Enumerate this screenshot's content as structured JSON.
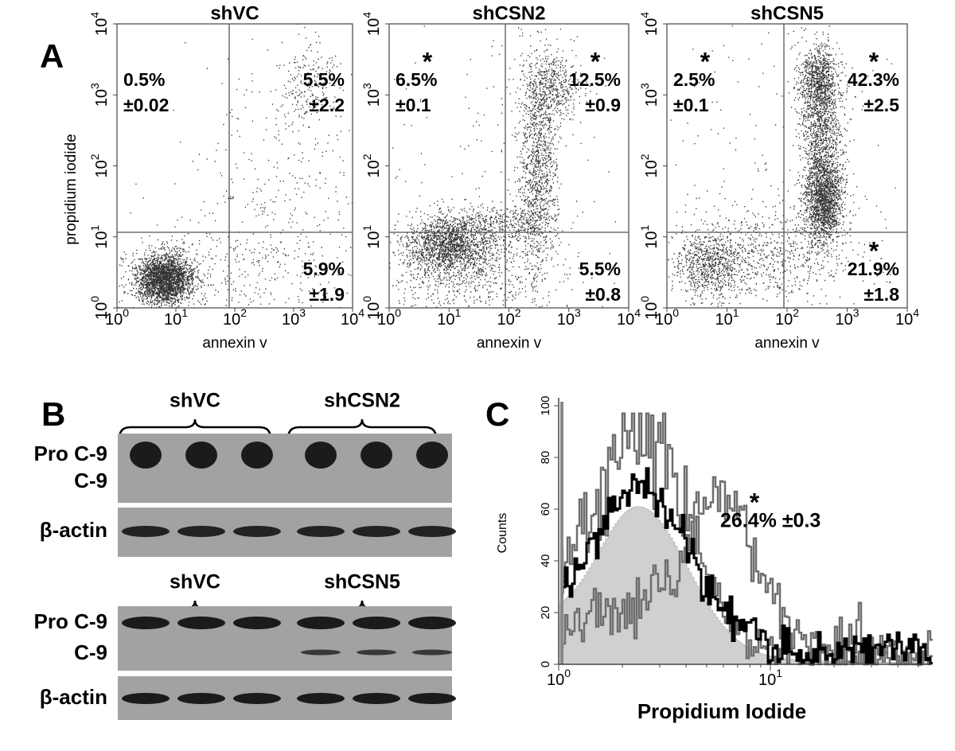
{
  "panel_a": {
    "label": "A",
    "y_axis_label": "propidium iodide",
    "tick_base": "10",
    "tick_exponents": [
      "0",
      "1",
      "2",
      "3",
      "4"
    ],
    "plots": [
      {
        "title": "shVC",
        "x_axis_label": "annexin v",
        "quadrants": [
          {
            "position": "upper_left",
            "value": "0.5%",
            "error": "±0.02"
          },
          {
            "position": "upper_right",
            "value": "5.5%",
            "error": "±2.2"
          },
          {
            "position": "lower_right",
            "value": "5.9%",
            "error": "±1.9"
          }
        ]
      },
      {
        "title": "shCSN2",
        "x_axis_label": "annexin v",
        "quadrants": [
          {
            "position": "upper_left",
            "value": "6.5%",
            "error": "±0.1",
            "mark": "*"
          },
          {
            "position": "upper_right",
            "value": "12.5%",
            "error": "±0.9",
            "mark": "*"
          },
          {
            "position": "lower_right",
            "value": "5.5%",
            "error": "±0.8"
          }
        ]
      },
      {
        "title": "shCSN5",
        "x_axis_label": "annexin v",
        "quadrants": [
          {
            "position": "upper_left",
            "value": "2.5%",
            "error": "±0.1",
            "mark": "*"
          },
          {
            "position": "upper_right",
            "value": "42.3%",
            "error": "±2.5",
            "mark": "*"
          },
          {
            "position": "lower_right",
            "value": "21.9%",
            "error": "±1.8",
            "mark": "*"
          }
        ]
      }
    ]
  },
  "panel_b": {
    "label": "B",
    "blots": [
      {
        "groups": [
          "shVC",
          "shCSN2"
        ],
        "rows": [
          "Pro C-9",
          "C-9",
          "β-actin"
        ]
      },
      {
        "groups": [
          "shVC",
          "shCSN5"
        ],
        "rows": [
          "Pro C-9",
          "C-9",
          "β-actin"
        ]
      }
    ]
  },
  "panel_c": {
    "label": "C",
    "y_axis_label": "Counts",
    "yticks": [
      0,
      20,
      40,
      60,
      80,
      100
    ],
    "tick_base": "10",
    "x_tick_exponents": [
      "0",
      "1"
    ],
    "x_axis_label": "Propidium Iodide",
    "annotation": "26.4% ±0.3",
    "asterisk": "*"
  }
}
